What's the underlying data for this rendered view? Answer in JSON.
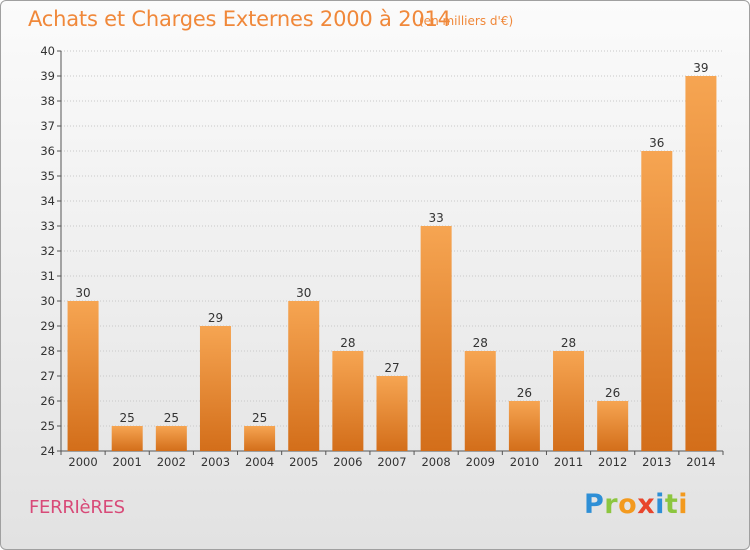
{
  "header": {
    "title": "Achats et Charges Externes 2000 à 2014",
    "subtitle": "(en milliers d'€)"
  },
  "footer": {
    "commune": "FERRIèRES",
    "logo_letters": [
      {
        "char": "P",
        "color": "#2e8fd6"
      },
      {
        "char": "r",
        "color": "#8cc63f"
      },
      {
        "char": "o",
        "color": "#f39a1e"
      },
      {
        "char": "x",
        "color": "#e8452c"
      },
      {
        "char": "i",
        "color": "#2e8fd6"
      },
      {
        "char": "t",
        "color": "#8cc63f"
      },
      {
        "char": "i",
        "color": "#f39a1e"
      }
    ]
  },
  "chart_data": {
    "type": "bar",
    "title": "Achats et Charges Externes 2000 à 2014",
    "subtitle": "(en milliers d'€)",
    "categories": [
      "2000",
      "2001",
      "2002",
      "2003",
      "2004",
      "2005",
      "2006",
      "2007",
      "2008",
      "2009",
      "2010",
      "2011",
      "2012",
      "2013",
      "2014"
    ],
    "values": [
      30,
      25,
      25,
      29,
      25,
      30,
      28,
      27,
      33,
      28,
      26,
      28,
      26,
      36,
      39
    ],
    "ylim": [
      24,
      40
    ],
    "yticks": [
      24,
      25,
      26,
      27,
      28,
      29,
      30,
      31,
      32,
      33,
      34,
      35,
      36,
      37,
      38,
      39,
      40
    ],
    "grid": true,
    "bar_color_top": "#f6a552",
    "bar_color_bottom": "#d36e1a"
  }
}
